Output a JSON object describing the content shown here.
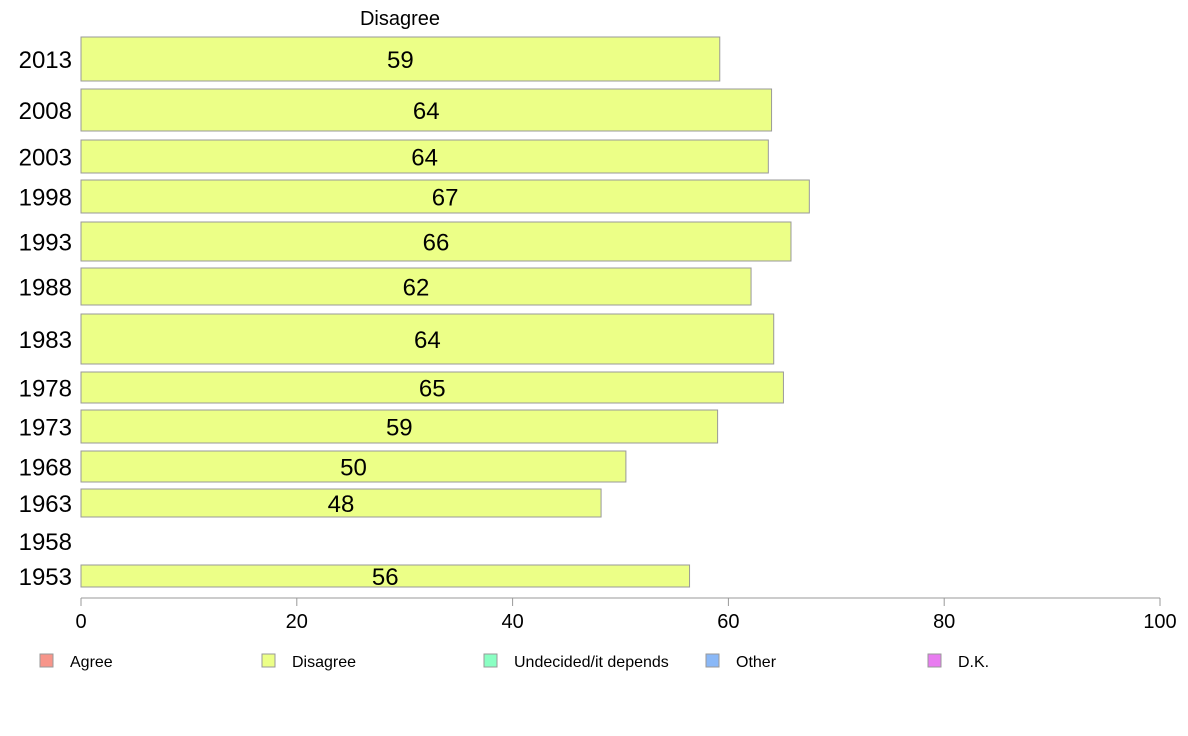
{
  "chart_data": {
    "type": "bar",
    "orientation": "horizontal",
    "title": "Disagree",
    "categories": [
      "2013",
      "2008",
      "2003",
      "1998",
      "1993",
      "1988",
      "1983",
      "1978",
      "1973",
      "1968",
      "1963",
      "1958",
      "1953"
    ],
    "values": [
      59.2,
      64.0,
      63.7,
      67.5,
      65.8,
      62.1,
      64.2,
      65.1,
      59.0,
      50.5,
      48.2,
      null,
      56.4
    ],
    "value_labels": [
      "59",
      "64",
      "64",
      "67",
      "66",
      "62",
      "64",
      "65",
      "59",
      "50",
      "48",
      "",
      "56"
    ],
    "xlim": [
      0,
      100
    ],
    "xticks": [
      0,
      20,
      40,
      60,
      80,
      100
    ],
    "xtick_labels": [
      "0",
      "20",
      "40",
      "60",
      "80",
      "100"
    ],
    "grid": false,
    "bar_color": "#ecff87",
    "legend_position": "bottom",
    "legend": [
      {
        "name": "Agree",
        "color": "#f7958a"
      },
      {
        "name": "Disagree",
        "color": "#ecff87"
      },
      {
        "name": "Undecided/it depends",
        "color": "#8affc3"
      },
      {
        "name": "Other",
        "color": "#8ab8f7"
      },
      {
        "name": "D.K.",
        "color": "#e87cf0"
      }
    ]
  }
}
